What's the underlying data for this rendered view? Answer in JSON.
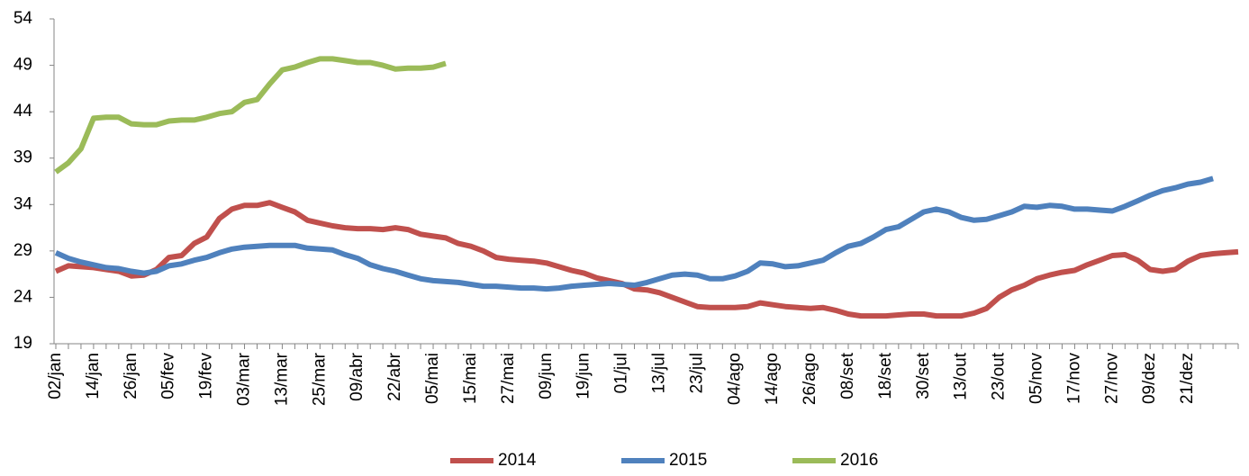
{
  "chart_data": {
    "type": "line",
    "categories": [
      "02/jan",
      null,
      null,
      "14/jan",
      null,
      null,
      "26/jan",
      null,
      null,
      "05/fev",
      null,
      null,
      "19/fev",
      null,
      null,
      "03/mar",
      null,
      null,
      "13/mar",
      null,
      null,
      "25/mar",
      null,
      null,
      "09/abr",
      null,
      null,
      "22/abr",
      null,
      null,
      "05/mai",
      null,
      null,
      "15/mai",
      null,
      null,
      "27/mai",
      null,
      null,
      "09/jun",
      null,
      null,
      "19/jun",
      null,
      null,
      "01/jul",
      null,
      null,
      "13/jul",
      null,
      null,
      "23/jul",
      null,
      null,
      "04/ago",
      null,
      null,
      "14/ago",
      null,
      null,
      "26/ago",
      null,
      null,
      "08/set",
      null,
      null,
      "18/set",
      null,
      null,
      "30/set",
      null,
      null,
      "13/out",
      null,
      null,
      "23/out",
      null,
      null,
      "05/nov",
      null,
      null,
      "17/nov",
      null,
      null,
      "27/nov",
      null,
      null,
      "09/dez",
      null,
      null,
      "21/dez",
      null,
      null,
      null,
      null
    ],
    "series": [
      {
        "name": "2014",
        "color": "#c0504d",
        "values": [
          26.8,
          27.4,
          27.3,
          27.2,
          27,
          26.8,
          26.3,
          26.4,
          27,
          28.3,
          28.5,
          29.8,
          30.5,
          32.5,
          33.5,
          33.9,
          33.9,
          34.2,
          33.7,
          33.2,
          32.3,
          32,
          31.7,
          31.5,
          31.4,
          31.4,
          31.3,
          31.5,
          31.3,
          30.8,
          30.6,
          30.4,
          29.8,
          29.5,
          29,
          28.3,
          28.1,
          28,
          27.9,
          27.7,
          27.3,
          26.9,
          26.6,
          26.1,
          25.8,
          25.5,
          24.9,
          24.8,
          24.5,
          24,
          23.5,
          23,
          22.9,
          22.9,
          22.9,
          23,
          23.4,
          23.2,
          23,
          22.9,
          22.8,
          22.9,
          22.6,
          22.2,
          22,
          22,
          22,
          22.1,
          22.2,
          22.2,
          22,
          22,
          22,
          22.3,
          22.8,
          24,
          24.8,
          25.3,
          26,
          26.4,
          26.7,
          26.9,
          27.5,
          28,
          28.5,
          28.6,
          28,
          27,
          26.8,
          27,
          27.9,
          28.5,
          28.7,
          28.8,
          28.9
        ]
      },
      {
        "name": "2015",
        "color": "#4f81bd",
        "values": [
          28.8,
          28.2,
          27.8,
          27.5,
          27.2,
          27.1,
          26.8,
          26.6,
          26.8,
          27.4,
          27.6,
          28,
          28.3,
          28.8,
          29.2,
          29.4,
          29.5,
          29.6,
          29.6,
          29.6,
          29.3,
          29.2,
          29.1,
          28.6,
          28.2,
          27.5,
          27.1,
          26.8,
          26.4,
          26,
          25.8,
          25.7,
          25.6,
          25.4,
          25.2,
          25.2,
          25.1,
          25,
          25,
          24.9,
          25,
          25.2,
          25.3,
          25.4,
          25.5,
          25.4,
          25.3,
          25.6,
          26,
          26.4,
          26.5,
          26.4,
          26,
          26,
          26.3,
          26.8,
          27.7,
          27.6,
          27.3,
          27.4,
          27.7,
          28,
          28.8,
          29.5,
          29.8,
          30.5,
          31.3,
          31.6,
          32.4,
          33.2,
          33.5,
          33.2,
          32.6,
          32.3,
          32.4,
          32.8,
          33.2,
          33.8,
          33.7,
          33.9,
          33.8,
          33.5,
          33.5,
          33.4,
          33.3,
          33.8,
          34.4,
          35,
          35.5,
          35.8,
          36.2,
          36.4,
          36.8,
          null,
          null
        ]
      },
      {
        "name": "2016",
        "color": "#9bbb59",
        "values": [
          37.5,
          38.5,
          40,
          43.3,
          43.4,
          43.4,
          42.7,
          42.6,
          42.6,
          43,
          43.1,
          43.1,
          43.4,
          43.8,
          44,
          45,
          45.3,
          47,
          48.5,
          48.8,
          49.3,
          49.7,
          49.7,
          49.5,
          49.3,
          49.3,
          49,
          48.6,
          48.7,
          48.7,
          48.8,
          49.2,
          null,
          null,
          null,
          null,
          null,
          null,
          null,
          null,
          null,
          null,
          null,
          null,
          null,
          null,
          null,
          null,
          null,
          null,
          null,
          null,
          null,
          null,
          null,
          null,
          null,
          null,
          null,
          null,
          null,
          null,
          null,
          null,
          null,
          null,
          null,
          null,
          null,
          null,
          null,
          null,
          null,
          null,
          null,
          null,
          null,
          null,
          null,
          null,
          null,
          null,
          null,
          null,
          null,
          null,
          null,
          null,
          null,
          null,
          null,
          null,
          null,
          null,
          null
        ]
      }
    ],
    "ylim": [
      19,
      54
    ],
    "yticks": [
      19,
      24,
      29,
      34,
      39,
      44,
      49,
      54
    ],
    "grid": false,
    "legend": "bottom"
  }
}
